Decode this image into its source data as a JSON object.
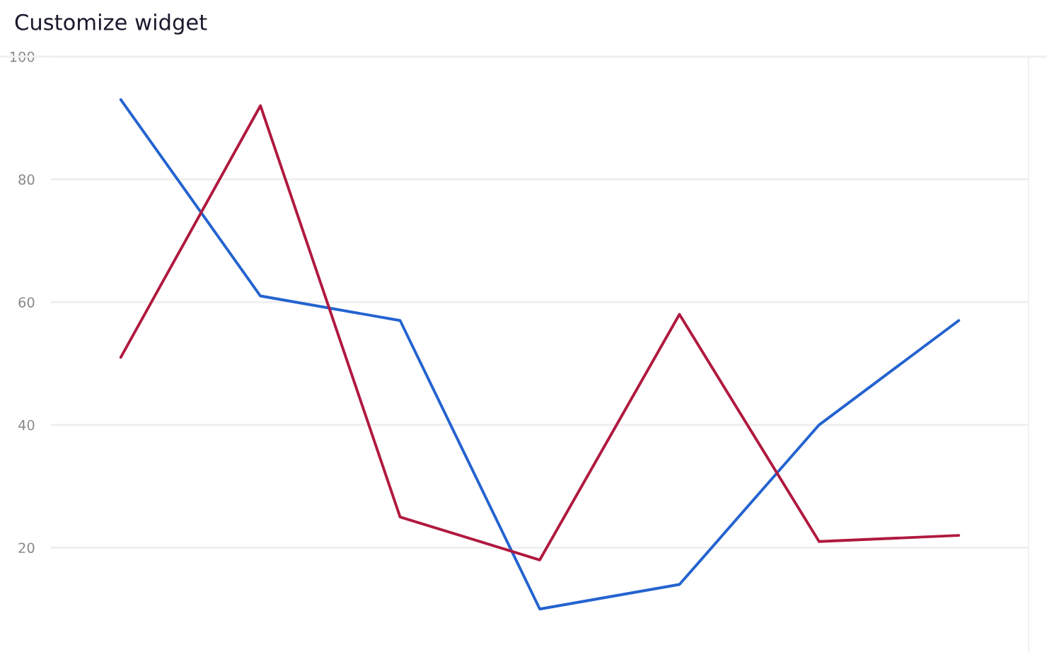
{
  "chart_data": {
    "type": "line",
    "title": "Customize widget",
    "categories": [
      null,
      null,
      null,
      null,
      null,
      null,
      null
    ],
    "series": [
      {
        "color": "#2463cf",
        "values": [
          93,
          61,
          57,
          10,
          14,
          40,
          57
        ]
      },
      {
        "color": "#b0193f",
        "values": [
          51,
          92,
          25,
          18,
          58,
          21,
          22
        ]
      }
    ],
    "ylim": [
      3,
      100
    ],
    "yticks": [
      20,
      40,
      60,
      80,
      100
    ],
    "grid": "y",
    "marker": "none",
    "line_style": "solid",
    "legend": false
  }
}
